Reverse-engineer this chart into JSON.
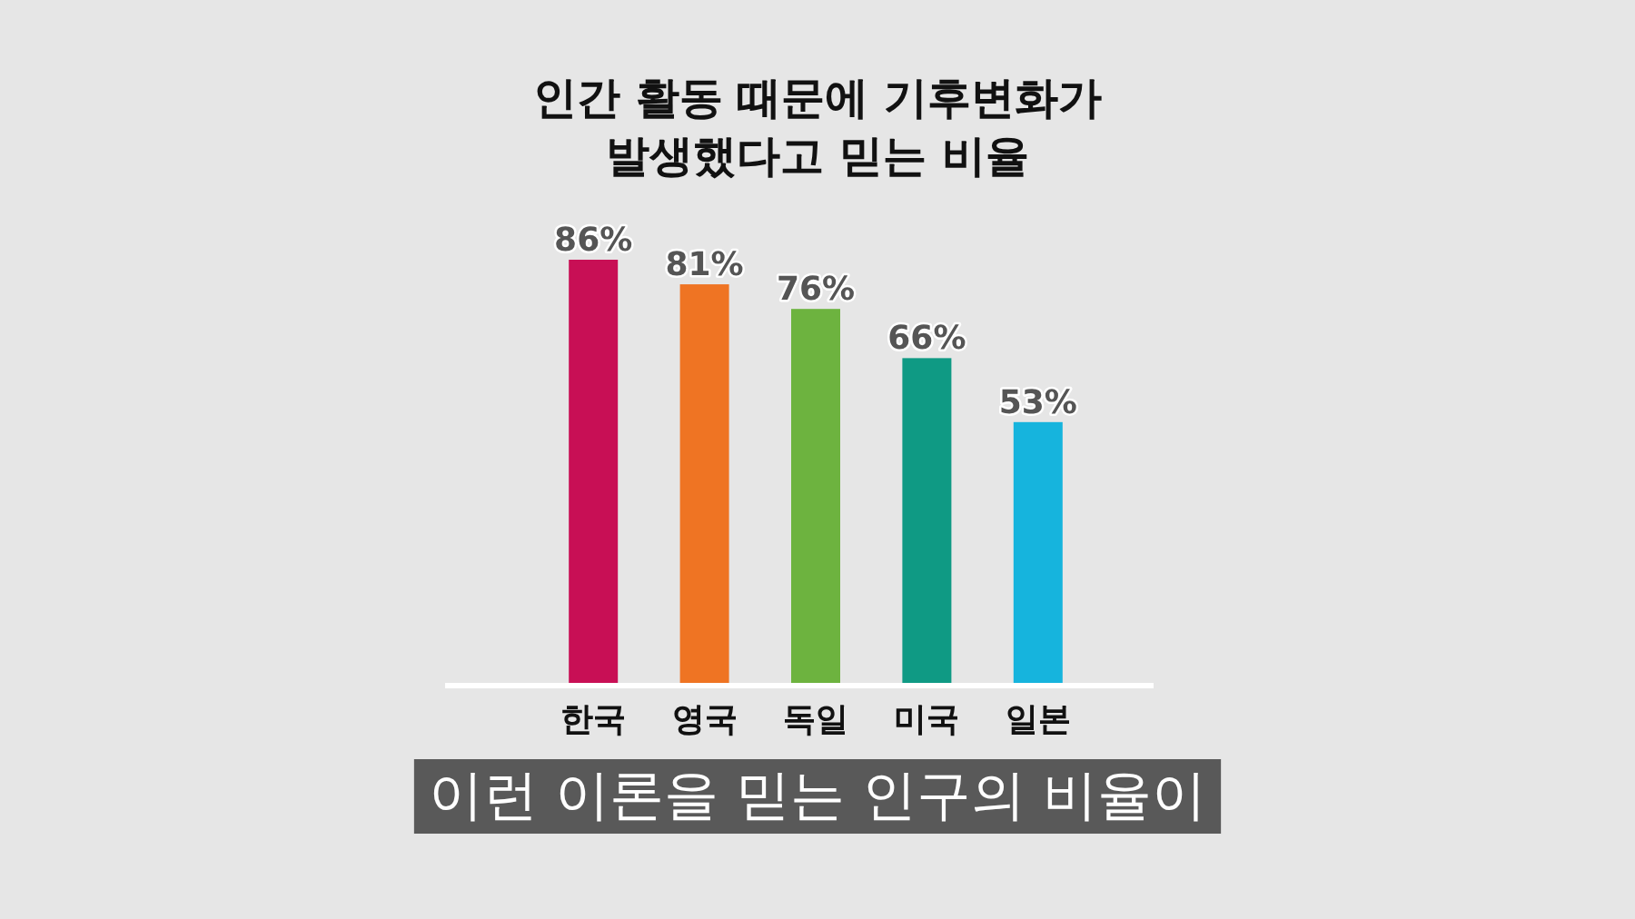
{
  "chart_data": {
    "type": "bar",
    "title": "인간 활동 때문에 기후변화가 발생했다고 믿는 비율",
    "categories": [
      "한국",
      "영국",
      "독일",
      "미국",
      "일본"
    ],
    "values": [
      86,
      81,
      76,
      66,
      53
    ],
    "colors": [
      "#c80f55",
      "#ef7423",
      "#6db33f",
      "#0f9a84",
      "#16b4dd"
    ],
    "value_labels": [
      "86%",
      "81%",
      "76%",
      "66%",
      "53%"
    ],
    "tick_labels": "x",
    "annotations": [
      "이런 이론을 믿는 인구의 비율이"
    ]
  }
}
